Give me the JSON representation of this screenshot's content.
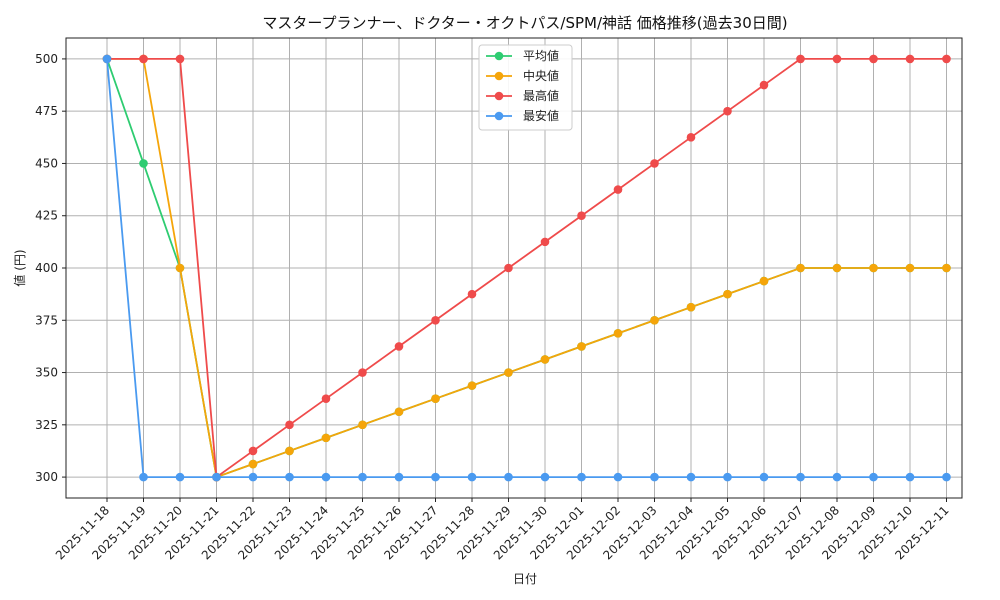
{
  "chart_data": {
    "type": "line",
    "title": "マスタープランナー、ドクター・オクトパス/SPM/神話 価格推移(過去30日間)",
    "xlabel": "日付",
    "ylabel": "値 (円)",
    "ylim": [
      290,
      510
    ],
    "yticks": [
      300,
      325,
      350,
      375,
      400,
      425,
      450,
      475,
      500
    ],
    "grid": true,
    "legend_position": "top-center",
    "categories": [
      "2025-11-18",
      "2025-11-19",
      "2025-11-20",
      "2025-11-21",
      "2025-11-22",
      "2025-11-23",
      "2025-11-24",
      "2025-11-25",
      "2025-11-26",
      "2025-11-27",
      "2025-11-28",
      "2025-11-29",
      "2025-11-30",
      "2025-12-01",
      "2025-12-02",
      "2025-12-03",
      "2025-12-04",
      "2025-12-05",
      "2025-12-06",
      "2025-12-07",
      "2025-12-08",
      "2025-12-09",
      "2025-12-10",
      "2025-12-11"
    ],
    "series": [
      {
        "name": "平均値",
        "color": "#2ecc71",
        "values": [
          500,
          450,
          400,
          300,
          306.25,
          312.5,
          318.75,
          325,
          331.25,
          337.5,
          343.75,
          350,
          356.25,
          362.5,
          368.75,
          375,
          381.25,
          387.5,
          393.75,
          400,
          400,
          400,
          400,
          400
        ]
      },
      {
        "name": "中央値",
        "color": "#f5a50a",
        "values": [
          500,
          500,
          400,
          300,
          306.25,
          312.5,
          318.75,
          325,
          331.25,
          337.5,
          343.75,
          350,
          356.25,
          362.5,
          368.75,
          375,
          381.25,
          387.5,
          393.75,
          400,
          400,
          400,
          400,
          400
        ]
      },
      {
        "name": "最高値",
        "color": "#ef4b4b",
        "values": [
          500,
          500,
          500,
          300,
          312.5,
          325,
          337.5,
          350,
          362.5,
          375,
          387.5,
          400,
          412.5,
          425,
          437.5,
          450,
          462.5,
          475,
          487.5,
          500,
          500,
          500,
          500,
          500
        ]
      },
      {
        "name": "最安値",
        "color": "#4a9af0",
        "values": [
          500,
          300,
          300,
          300,
          300,
          300,
          300,
          300,
          300,
          300,
          300,
          300,
          300,
          300,
          300,
          300,
          300,
          300,
          300,
          300,
          300,
          300,
          300,
          300
        ]
      }
    ]
  }
}
